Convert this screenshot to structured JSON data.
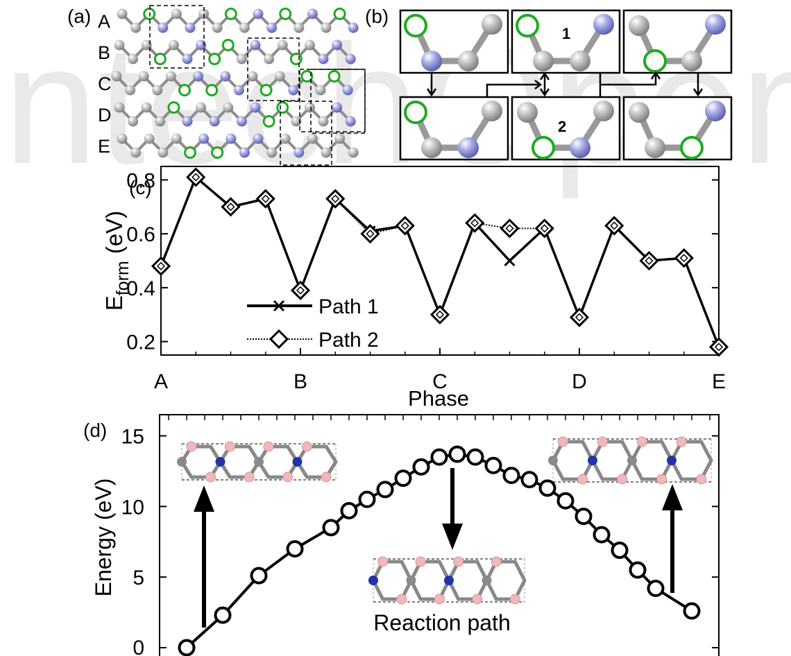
{
  "watermark": "IntechOpen",
  "panel_labels": {
    "a": "(a)",
    "b": "(b)",
    "c": "(c)",
    "d": "(d)"
  },
  "panel_a": {
    "rows": [
      "A",
      "B",
      "C",
      "D",
      "E"
    ]
  },
  "panel_b": {
    "box_labels": [
      "1",
      "2"
    ]
  },
  "colors": {
    "carbon": "#a9a9a9",
    "nitrogen_a": "#8a8fd6",
    "green": "#1faa1f",
    "nitrogen_d": "#2233aa",
    "hydrogen_d": "#f0b8b8"
  },
  "chart_data": [
    {
      "panel": "(c)",
      "type": "line",
      "title": "",
      "xlabel": "Phase",
      "ylabel_main": "E",
      "ylabel_sub": "form",
      "ylabel_unit": "(eV)",
      "x_tick_labels": [
        "A",
        "B",
        "C",
        "D",
        "E"
      ],
      "x_tick_positions": [
        0,
        4,
        8,
        12,
        16
      ],
      "xlim": [
        0,
        16
      ],
      "ylim": [
        0.15,
        0.85
      ],
      "y_ticks": [
        0.2,
        0.4,
        0.6,
        0.8
      ],
      "y_tick_labels": [
        "0.2",
        "0.4",
        "0.6",
        "0.8"
      ],
      "legend_position": "lower-left",
      "series": [
        {
          "name": "Path 1",
          "marker": "x",
          "line": "solid",
          "x": [
            0,
            1,
            2,
            3,
            4,
            5,
            6,
            7,
            8,
            9,
            10,
            11,
            12,
            13,
            14,
            15,
            16
          ],
          "y": [
            0.48,
            0.81,
            0.7,
            0.73,
            0.39,
            0.73,
            0.61,
            0.63,
            0.3,
            0.64,
            0.5,
            0.62,
            0.29,
            0.63,
            0.5,
            0.51,
            0.18
          ]
        },
        {
          "name": "Path 2",
          "marker": "diamond",
          "line": "dotted",
          "x": [
            0,
            1,
            2,
            3,
            4,
            5,
            6,
            7,
            8,
            9,
            10,
            11,
            12,
            13,
            14,
            15,
            16
          ],
          "y": [
            0.48,
            0.81,
            0.7,
            0.73,
            0.39,
            0.73,
            0.6,
            0.63,
            0.3,
            0.64,
            0.62,
            0.62,
            0.29,
            0.63,
            0.5,
            0.51,
            0.18
          ]
        }
      ]
    },
    {
      "panel": "(d)",
      "type": "line",
      "title": "",
      "xlabel": "Reaction path",
      "ylabel": "Energy (eV)",
      "ylim": [
        0,
        16.5
      ],
      "y_ticks": [
        0,
        5,
        10,
        15
      ],
      "y_tick_labels": [
        "0",
        "5",
        "10",
        "15"
      ],
      "xlim": [
        -1.5,
        29.5
      ],
      "x_minor_ticks": 31,
      "marker": "circle",
      "series": [
        {
          "name": "",
          "x": [
            0,
            2,
            4,
            6,
            8,
            9,
            10,
            11,
            12,
            13,
            14,
            15,
            16,
            17,
            18,
            19,
            20,
            21,
            22,
            23,
            24,
            25,
            26,
            28
          ],
          "y": [
            0,
            2.3,
            5.1,
            7.0,
            8.5,
            9.7,
            10.5,
            11.2,
            12.0,
            12.8,
            13.5,
            13.7,
            13.5,
            12.9,
            12.2,
            11.9,
            11.3,
            10.4,
            9.3,
            8.0,
            6.9,
            5.5,
            4.2,
            2.6
          ]
        }
      ]
    }
  ]
}
